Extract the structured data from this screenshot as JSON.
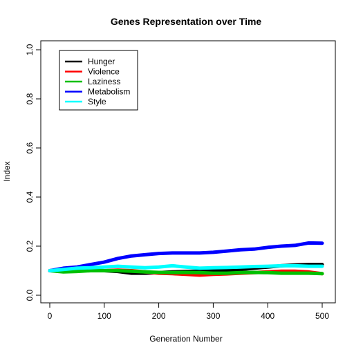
{
  "chart_data": {
    "type": "line",
    "title": "Genes Representation over Time",
    "xlabel": "Generation Number",
    "ylabel": "Index",
    "xlim": [
      0,
      500
    ],
    "ylim": [
      0,
      1
    ],
    "xticks": [
      0,
      100,
      200,
      300,
      400,
      500
    ],
    "yticks": [
      0.0,
      0.2,
      0.4,
      0.6,
      0.8,
      1.0
    ],
    "ytick_labels": [
      "0.0",
      "0.2",
      "0.4",
      "0.6",
      "0.8",
      "1.0"
    ],
    "xtick_labels": [
      "0",
      "100",
      "200",
      "300",
      "400",
      "500"
    ],
    "grid": false,
    "legend_position": "top-left",
    "x": [
      0,
      25,
      50,
      75,
      100,
      125,
      150,
      175,
      200,
      225,
      250,
      275,
      300,
      325,
      350,
      375,
      400,
      425,
      450,
      475,
      500
    ],
    "series": [
      {
        "name": "Hunger",
        "color": "#000000",
        "values": [
          0.1,
          0.1,
          0.102,
          0.103,
          0.1,
          0.097,
          0.09,
          0.09,
          0.092,
          0.095,
          0.097,
          0.098,
          0.1,
          0.102,
          0.105,
          0.11,
          0.115,
          0.12,
          0.123,
          0.125,
          0.125
        ]
      },
      {
        "name": "Violence",
        "color": "#ff0000",
        "values": [
          0.1,
          0.098,
          0.1,
          0.102,
          0.1,
          0.102,
          0.1,
          0.095,
          0.09,
          0.088,
          0.085,
          0.082,
          0.085,
          0.087,
          0.09,
          0.092,
          0.095,
          0.098,
          0.098,
          0.095,
          0.088
        ]
      },
      {
        "name": "Laziness",
        "color": "#00c000",
        "values": [
          0.1,
          0.095,
          0.097,
          0.1,
          0.1,
          0.1,
          0.098,
          0.095,
          0.093,
          0.092,
          0.093,
          0.092,
          0.09,
          0.09,
          0.092,
          0.093,
          0.092,
          0.09,
          0.09,
          0.09,
          0.088
        ]
      },
      {
        "name": "Metabolism",
        "color": "#0000ff",
        "values": [
          0.1,
          0.11,
          0.115,
          0.125,
          0.135,
          0.15,
          0.16,
          0.165,
          0.17,
          0.172,
          0.172,
          0.172,
          0.175,
          0.18,
          0.185,
          0.188,
          0.195,
          0.2,
          0.203,
          0.213,
          0.212
        ]
      },
      {
        "name": "Style",
        "color": "#00ffff",
        "values": [
          0.1,
          0.105,
          0.11,
          0.112,
          0.115,
          0.118,
          0.115,
          0.112,
          0.115,
          0.12,
          0.115,
          0.11,
          0.112,
          0.113,
          0.115,
          0.117,
          0.118,
          0.12,
          0.12,
          0.118,
          0.118
        ]
      }
    ]
  }
}
